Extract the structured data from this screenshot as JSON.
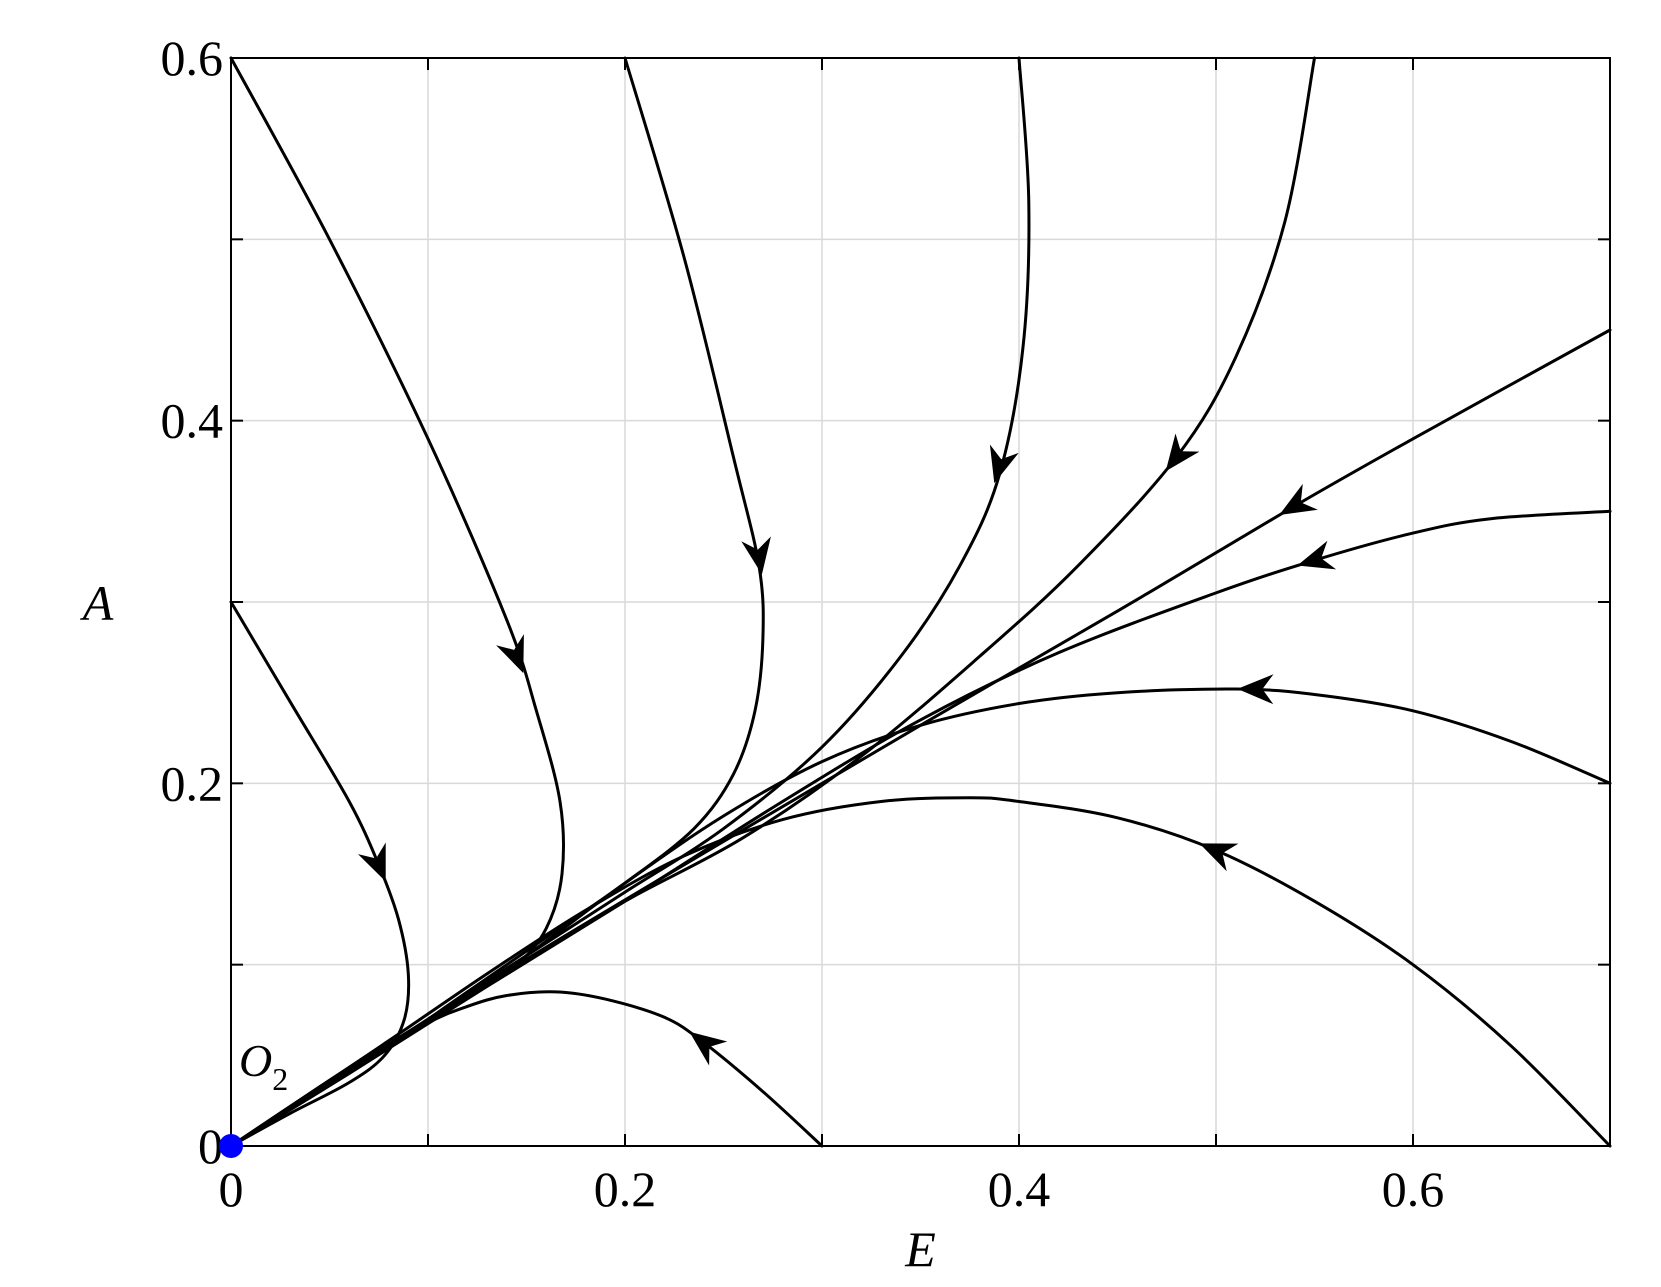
{
  "chart_data": {
    "type": "line",
    "title": "",
    "xlabel": "E",
    "ylabel": "A",
    "xlim": [
      0,
      0.7
    ],
    "ylim": [
      0,
      0.6
    ],
    "x_ticks": [
      0,
      0.2,
      0.4,
      0.6
    ],
    "x_tick_labels": [
      "0",
      "0.2",
      "0.4",
      "0.6"
    ],
    "y_ticks": [
      0,
      0.2,
      0.4,
      0.6
    ],
    "y_tick_labels": [
      "0",
      "0.2",
      "0.4",
      "0.6"
    ],
    "x_grid": [
      0.1,
      0.2,
      0.3,
      0.4,
      0.5,
      0.6
    ],
    "y_grid": [
      0.1,
      0.2,
      0.3,
      0.4,
      0.5
    ],
    "grid": true,
    "legend": "none",
    "equilibrium": {
      "label": "O",
      "subscript": "2",
      "x": 0,
      "y": 0,
      "color": "#0000ff"
    },
    "trajectory_color": "#000000",
    "series": [
      {
        "points": [
          [
            0,
            0.3
          ],
          [
            0.03,
            0.245
          ],
          [
            0.06,
            0.19
          ],
          [
            0.075,
            0.155
          ],
          [
            0.085,
            0.125
          ],
          [
            0.09,
            0.095
          ],
          [
            0.088,
            0.07
          ],
          [
            0.078,
            0.05
          ],
          [
            0.06,
            0.035
          ],
          [
            0.03,
            0.018
          ],
          [
            0,
            0
          ]
        ],
        "arrow_at": [
          0.075,
          0.155
        ]
      },
      {
        "points": [
          [
            0,
            0.6
          ],
          [
            0.05,
            0.5
          ],
          [
            0.1,
            0.39
          ],
          [
            0.14,
            0.29
          ],
          [
            0.155,
            0.24
          ],
          [
            0.167,
            0.19
          ],
          [
            0.168,
            0.15
          ],
          [
            0.16,
            0.12
          ],
          [
            0.145,
            0.1
          ],
          [
            0.12,
            0.082
          ],
          [
            0.09,
            0.063
          ],
          [
            0.06,
            0.042
          ],
          [
            0.03,
            0.021
          ],
          [
            0,
            0
          ]
        ],
        "arrow_at": [
          0.145,
          0.27
        ]
      },
      {
        "points": [
          [
            0.2,
            0.6
          ],
          [
            0.23,
            0.49
          ],
          [
            0.255,
            0.38
          ],
          [
            0.268,
            0.32
          ],
          [
            0.27,
            0.28
          ],
          [
            0.266,
            0.24
          ],
          [
            0.255,
            0.205
          ],
          [
            0.235,
            0.175
          ],
          [
            0.2,
            0.145
          ],
          [
            0.16,
            0.115
          ],
          [
            0.12,
            0.085
          ],
          [
            0.08,
            0.055
          ],
          [
            0.04,
            0.027
          ],
          [
            0,
            0
          ]
        ],
        "arrow_at": [
          0.268,
          0.325
        ]
      },
      {
        "points": [
          [
            0.4,
            0.6
          ],
          [
            0.405,
            0.52
          ],
          [
            0.402,
            0.44
          ],
          [
            0.39,
            0.37
          ],
          [
            0.37,
            0.32
          ],
          [
            0.34,
            0.27
          ],
          [
            0.3,
            0.22
          ],
          [
            0.25,
            0.175
          ],
          [
            0.2,
            0.14
          ],
          [
            0.15,
            0.105
          ],
          [
            0.1,
            0.07
          ],
          [
            0.05,
            0.035
          ],
          [
            0,
            0
          ]
        ],
        "arrow_at": [
          0.39,
          0.375
        ]
      },
      {
        "points": [
          [
            0.55,
            0.6
          ],
          [
            0.535,
            0.51
          ],
          [
            0.51,
            0.435
          ],
          [
            0.48,
            0.38
          ],
          [
            0.43,
            0.32
          ],
          [
            0.38,
            0.27
          ],
          [
            0.32,
            0.215
          ],
          [
            0.26,
            0.17
          ],
          [
            0.2,
            0.135
          ],
          [
            0.15,
            0.102
          ],
          [
            0.1,
            0.068
          ],
          [
            0.05,
            0.034
          ],
          [
            0,
            0
          ]
        ],
        "arrow_at": [
          0.48,
          0.38
        ]
      },
      {
        "points": [
          [
            0.7,
            0.45
          ],
          [
            0.6,
            0.39
          ],
          [
            0.54,
            0.353
          ],
          [
            0.45,
            0.295
          ],
          [
            0.35,
            0.232
          ],
          [
            0.25,
            0.168
          ],
          [
            0.15,
            0.103
          ],
          [
            0.08,
            0.055
          ],
          [
            0,
            0
          ]
        ],
        "arrow_at": [
          0.54,
          0.353
        ]
      },
      {
        "points": [
          [
            0.7,
            0.35
          ],
          [
            0.64,
            0.346
          ],
          [
            0.6,
            0.338
          ],
          [
            0.55,
            0.323
          ],
          [
            0.5,
            0.305
          ],
          [
            0.42,
            0.272
          ],
          [
            0.35,
            0.235
          ],
          [
            0.28,
            0.19
          ],
          [
            0.2,
            0.135
          ],
          [
            0.13,
            0.088
          ],
          [
            0.06,
            0.04
          ],
          [
            0,
            0
          ]
        ],
        "arrow_at": [
          0.55,
          0.323
        ]
      },
      {
        "points": [
          [
            0.7,
            0.2
          ],
          [
            0.65,
            0.223
          ],
          [
            0.6,
            0.24
          ],
          [
            0.55,
            0.249
          ],
          [
            0.51,
            0.252
          ],
          [
            0.45,
            0.25
          ],
          [
            0.4,
            0.244
          ],
          [
            0.35,
            0.232
          ],
          [
            0.3,
            0.212
          ],
          [
            0.25,
            0.182
          ],
          [
            0.2,
            0.145
          ],
          [
            0.15,
            0.105
          ],
          [
            0.1,
            0.068
          ],
          [
            0.05,
            0.034
          ],
          [
            0,
            0
          ]
        ],
        "arrow_at": [
          0.52,
          0.252
        ]
      },
      {
        "points": [
          [
            0.7,
            0
          ],
          [
            0.65,
            0.055
          ],
          [
            0.6,
            0.1
          ],
          [
            0.55,
            0.135
          ],
          [
            0.5,
            0.163
          ],
          [
            0.45,
            0.181
          ],
          [
            0.4,
            0.19
          ],
          [
            0.375,
            0.192
          ],
          [
            0.33,
            0.19
          ],
          [
            0.28,
            0.18
          ],
          [
            0.23,
            0.16
          ],
          [
            0.18,
            0.13
          ],
          [
            0.13,
            0.095
          ],
          [
            0.08,
            0.058
          ],
          [
            0.04,
            0.029
          ],
          [
            0,
            0
          ]
        ],
        "arrow_at": [
          0.5,
          0.163
        ]
      },
      {
        "points": [
          [
            0.3,
            0
          ],
          [
            0.27,
            0.03
          ],
          [
            0.24,
            0.057
          ],
          [
            0.22,
            0.071
          ],
          [
            0.19,
            0.081
          ],
          [
            0.165,
            0.085
          ],
          [
            0.14,
            0.083
          ],
          [
            0.12,
            0.077
          ],
          [
            0.1,
            0.068
          ],
          [
            0.07,
            0.05
          ],
          [
            0.04,
            0.029
          ],
          [
            0,
            0
          ]
        ],
        "arrow_at": [
          0.24,
          0.057
        ]
      }
    ]
  }
}
